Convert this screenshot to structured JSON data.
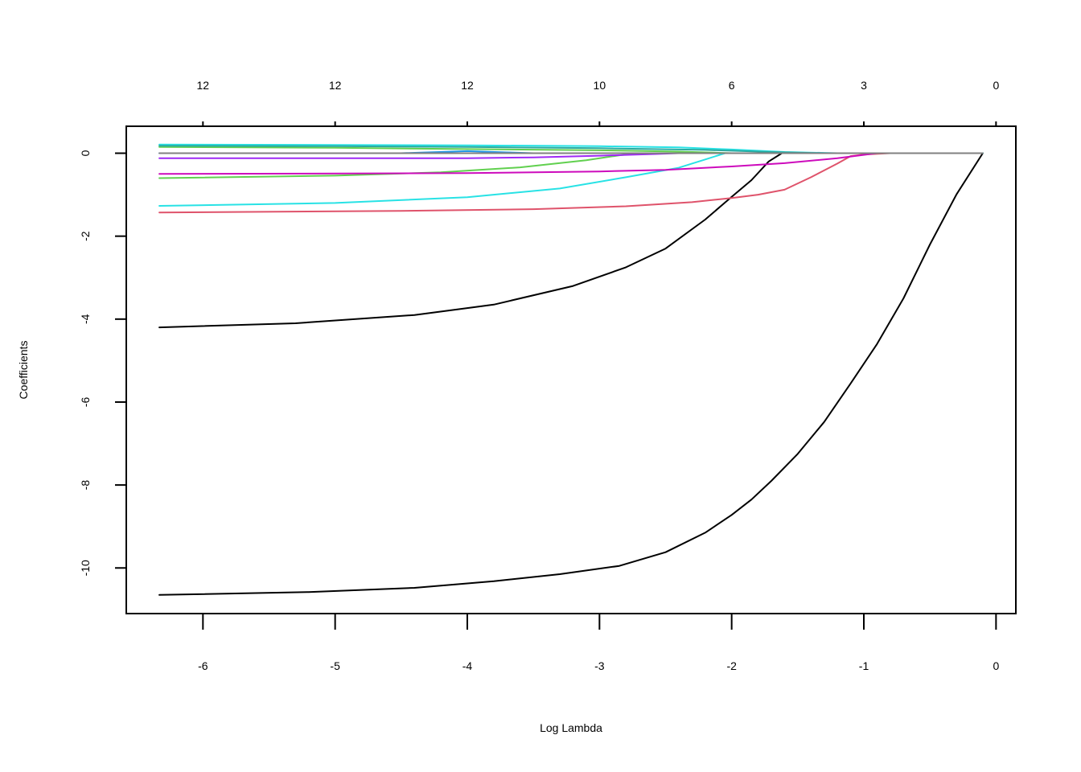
{
  "chart_data": {
    "type": "line",
    "xlabel": "Log Lambda",
    "ylabel": "Coefficients",
    "xlim": [
      -6.58,
      0.15
    ],
    "ylim": [
      -11.1,
      0.65
    ],
    "x_ticks": [
      -6,
      -5,
      -4,
      -3,
      -2,
      -1,
      0
    ],
    "x_tick_labels": [
      "-6",
      "-5",
      "-4",
      "-3",
      "-2",
      "-1",
      "0"
    ],
    "y_ticks": [
      0,
      -2,
      -4,
      -6,
      -8,
      -10
    ],
    "y_tick_labels": [
      "0",
      "-2",
      "-4",
      "-6",
      "-8",
      "-10"
    ],
    "top_axis": {
      "ticks": [
        -6,
        -5,
        -4,
        -3,
        -2,
        -1,
        0
      ],
      "labels": [
        "12",
        "12",
        "12",
        "10",
        "6",
        "3",
        "0"
      ]
    },
    "grid": false,
    "legend": "none",
    "series": [
      {
        "color": "#000000",
        "x": [
          -6.33,
          -5.2,
          -4.4,
          -3.8,
          -3.3,
          -2.85,
          -2.5,
          -2.2,
          -2.0,
          -1.85,
          -1.7,
          -1.5,
          -1.3,
          -1.1,
          -0.9,
          -0.7,
          -0.5,
          -0.3,
          -0.1
        ],
        "y": [
          -10.65,
          -10.58,
          -10.48,
          -10.32,
          -10.15,
          -9.95,
          -9.62,
          -9.15,
          -8.72,
          -8.35,
          -7.9,
          -7.25,
          -6.48,
          -5.55,
          -4.6,
          -3.5,
          -2.2,
          -1.0,
          0.0
        ]
      },
      {
        "color": "#000000",
        "x": [
          -6.33,
          -5.3,
          -4.4,
          -3.8,
          -3.2,
          -2.8,
          -2.5,
          -2.2,
          -2.0,
          -1.85,
          -1.72,
          -1.62
        ],
        "y": [
          -4.2,
          -4.1,
          -3.9,
          -3.65,
          -3.2,
          -2.75,
          -2.3,
          -1.6,
          -1.05,
          -0.65,
          -0.2,
          0.0
        ]
      },
      {
        "color": "#DF536B",
        "x": [
          -6.33,
          -4.5,
          -3.5,
          -2.8,
          -2.3,
          -2.0,
          -1.8,
          -1.6,
          -1.4,
          -1.2,
          -1.1,
          -1.0,
          -0.8
        ],
        "y": [
          -1.43,
          -1.39,
          -1.35,
          -1.28,
          -1.18,
          -1.08,
          -1.0,
          -0.88,
          -0.58,
          -0.25,
          -0.07,
          -0.03,
          0.0
        ]
      },
      {
        "color": "#28E2E5",
        "x": [
          -6.33,
          -5.0,
          -4.0,
          -3.3,
          -2.8,
          -2.4,
          -2.2,
          -2.05
        ],
        "y": [
          -1.27,
          -1.2,
          -1.06,
          -0.85,
          -0.58,
          -0.35,
          -0.15,
          0.0
        ]
      },
      {
        "color": "#61D04F",
        "x": [
          -6.33,
          -5.0,
          -4.2,
          -3.6,
          -3.1,
          -2.85,
          -2.7
        ],
        "y": [
          -0.6,
          -0.54,
          -0.46,
          -0.34,
          -0.17,
          -0.05,
          0.0
        ]
      },
      {
        "color": "#CD0BBC",
        "x": [
          -6.33,
          -4.0,
          -3.0,
          -2.5,
          -2.0,
          -1.6,
          -1.2,
          -0.9,
          -0.8,
          -0.1
        ],
        "y": [
          -0.5,
          -0.48,
          -0.44,
          -0.4,
          -0.32,
          -0.24,
          -0.12,
          0.0,
          0.0,
          0.0
        ]
      },
      {
        "color": "#9E29F5",
        "x": [
          -6.33,
          -4.0,
          -3.5,
          -3.0,
          -2.6,
          -2.4,
          -0.1
        ],
        "y": [
          -0.12,
          -0.12,
          -0.1,
          -0.06,
          -0.02,
          0.0,
          0.0
        ]
      },
      {
        "color": "#2297E6",
        "x": [
          -6.33,
          -4.5,
          -4.0,
          -3.7,
          -3.5,
          -0.1
        ],
        "y": [
          0.0,
          0.0,
          0.05,
          0.02,
          0.0,
          0.0
        ]
      },
      {
        "color": "#61D04F",
        "x": [
          -6.33,
          -5.0,
          -4.0,
          -3.0,
          -2.4,
          -2.1,
          -2.0,
          -0.1
        ],
        "y": [
          0.15,
          0.13,
          0.1,
          0.07,
          0.04,
          0.01,
          0.0,
          0.0
        ]
      },
      {
        "color": "#28E2E5",
        "x": [
          -6.33,
          -5.0,
          -4.0,
          -3.0,
          -2.4,
          -2.0,
          -1.6,
          -1.2,
          -0.9,
          -0.1
        ],
        "y": [
          0.21,
          0.2,
          0.19,
          0.17,
          0.14,
          0.09,
          0.03,
          0.0,
          0.0,
          0.0
        ]
      },
      {
        "color": "#2AAAA0",
        "x": [
          -6.33,
          -5.0,
          -4.0,
          -3.0,
          -2.2,
          -1.7,
          -1.3,
          -0.1
        ],
        "y": [
          0.18,
          0.17,
          0.15,
          0.12,
          0.08,
          0.03,
          0.0,
          0.0
        ]
      },
      {
        "color": "#808080",
        "x": [
          -6.33,
          -0.1
        ],
        "y": [
          0.0,
          0.0
        ]
      }
    ]
  }
}
